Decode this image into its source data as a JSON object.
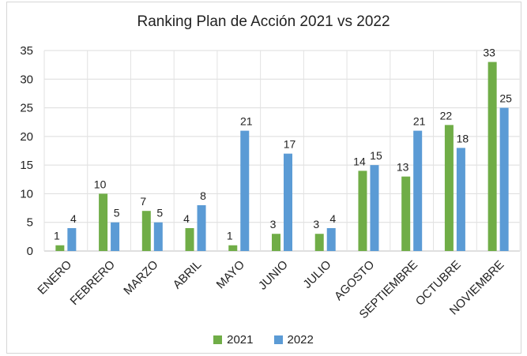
{
  "chart_data": {
    "type": "bar",
    "title": "Ranking Plan de Acción 2021 vs 2022",
    "categories": [
      "ENERO",
      "FEBRERO",
      "MARZO",
      "ABRIL",
      "MAYO",
      "JUNIO",
      "JULIO",
      "AGOSTO",
      "SEPTIEMBRE",
      "OCTUBRE",
      "NOVIEMBRE"
    ],
    "series": [
      {
        "name": "2021",
        "color": "#70ad47",
        "values": [
          1,
          10,
          7,
          4,
          1,
          3,
          3,
          14,
          13,
          22,
          33
        ]
      },
      {
        "name": "2022",
        "color": "#5b9bd5",
        "values": [
          4,
          5,
          5,
          8,
          21,
          17,
          4,
          15,
          21,
          18,
          25
        ]
      }
    ],
    "ylim": [
      0,
      35
    ],
    "yticks": [
      0,
      5,
      10,
      15,
      20,
      25,
      30,
      35
    ],
    "xlabel": "",
    "ylabel": "",
    "grid": true,
    "legend": "bottom-center"
  }
}
